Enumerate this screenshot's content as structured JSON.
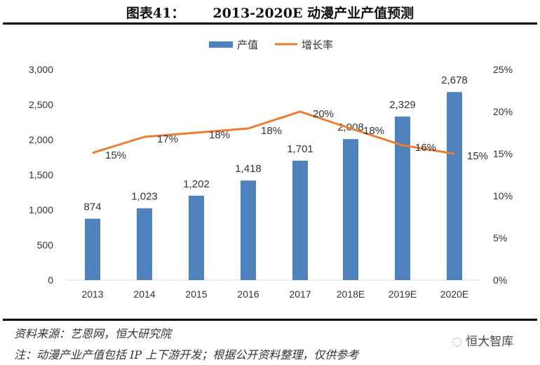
{
  "figure": {
    "label": "图表41：",
    "title": "2013-2020E 动漫产业产值预测"
  },
  "chart_data": {
    "type": "bar+line",
    "title": "2013-2020E 动漫产业产值预测",
    "categories": [
      "2013",
      "2014",
      "2015",
      "2016",
      "2017",
      "2018E",
      "2019E",
      "2020E"
    ],
    "series": [
      {
        "name": "产值",
        "type": "bar",
        "axis": "left",
        "color": "#4F81BD",
        "values": [
          874,
          1023,
          1202,
          1418,
          1701,
          2008,
          2329,
          2678
        ],
        "labels": [
          "874",
          "1,023",
          "1,202",
          "1,418",
          "1,701",
          "2,008",
          "2,329",
          "2,678"
        ]
      },
      {
        "name": "增长率",
        "type": "line",
        "axis": "right",
        "color": "#ED7D31",
        "values": [
          15.1,
          17.0,
          17.5,
          18.0,
          20.0,
          18.0,
          16.0,
          15.0
        ],
        "labels": [
          "15%",
          "17%",
          "18%",
          "18%",
          "20%",
          "18%",
          "16%",
          "15%"
        ]
      }
    ],
    "left_axis": {
      "ylim": [
        0,
        3000
      ],
      "ticks": [
        "0",
        "500",
        "1,000",
        "1,500",
        "2,000",
        "2,500",
        "3,000"
      ]
    },
    "right_axis": {
      "ylim": [
        0,
        25
      ],
      "ticks": [
        "0%",
        "5%",
        "10%",
        "15%",
        "20%",
        "25%"
      ]
    },
    "legend": "top-center",
    "grid": false
  },
  "footer": {
    "source": "资料来源：艺恩网，恒大研究院",
    "note": "注：动漫产业产值包括 IP 上下游开发；根据公开资料整理，仅供参考",
    "watermark": "恒大智库"
  }
}
